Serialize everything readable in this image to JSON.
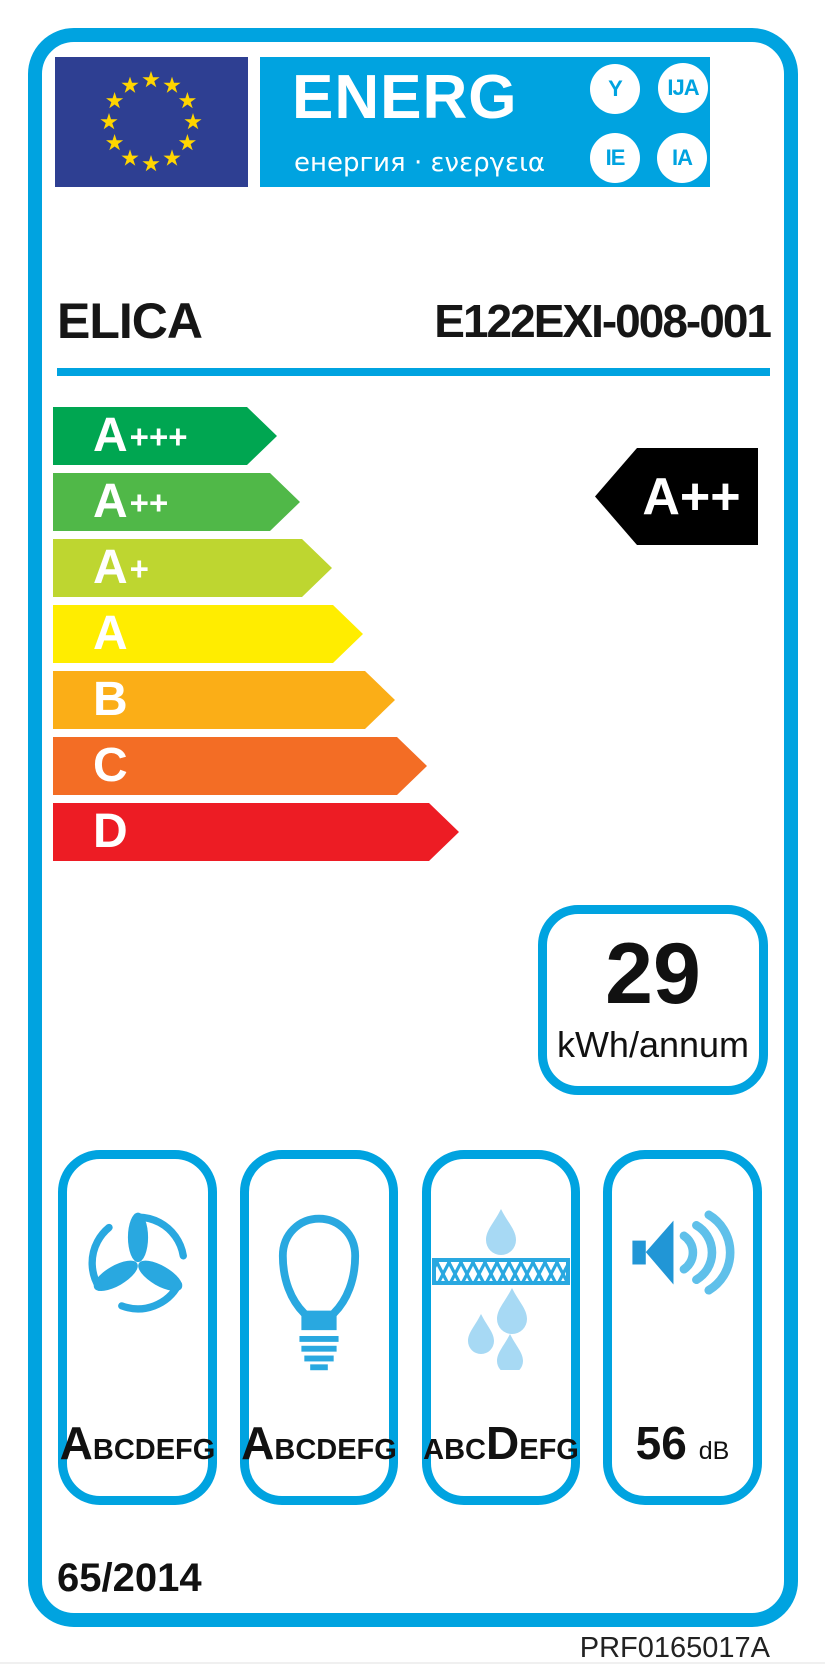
{
  "colors": {
    "accent": "#00a3e0",
    "flag_bg": "#2e3f92",
    "star": "#ffd500",
    "indicator_bg": "#000000",
    "icon_blue": "#29a8e0",
    "droplet_blue": "#a7d9f4"
  },
  "header": {
    "energ": "ENERG",
    "subtitle": "енергия · ενεργεια",
    "circles": [
      "Y",
      "IJA",
      "IE",
      "IA"
    ]
  },
  "product": {
    "brand": "ELICA",
    "model": "E122EXI-008-001"
  },
  "rating_scale": {
    "classes": [
      {
        "label": "A+++",
        "color": "#00a651"
      },
      {
        "label": "A++",
        "color": "#50b848"
      },
      {
        "label": "A+",
        "color": "#bed630"
      },
      {
        "label": "A",
        "color": "#ffed00"
      },
      {
        "label": "B",
        "color": "#fbae17"
      },
      {
        "label": "C",
        "color": "#f36d25"
      },
      {
        "label": "D",
        "color": "#ed1c24"
      }
    ],
    "current": "A++"
  },
  "energy": {
    "value": "29",
    "unit": "kWh/annum"
  },
  "features": {
    "fan": {
      "icon": "fan-icon",
      "pre": "",
      "big": "A",
      "post": "BCDEFG"
    },
    "lighting": {
      "icon": "light-bulb-icon",
      "pre": "",
      "big": "A",
      "post": "BCDEFG"
    },
    "grease": {
      "icon": "grease-filter-icon",
      "pre": "ABC",
      "big": "D",
      "post": "EFG"
    },
    "noise": {
      "icon": "speaker-icon",
      "value": "56",
      "unit": "dB"
    }
  },
  "footer": {
    "regulation": "65/2014",
    "code": "PRF0165017A"
  }
}
